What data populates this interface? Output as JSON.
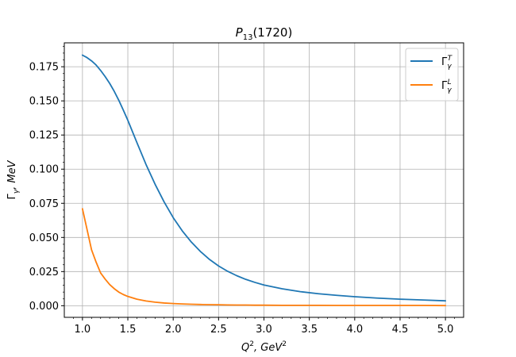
{
  "chart_data": {
    "type": "line",
    "title": "P13(1720)",
    "xlabel": "Q², GeV²",
    "ylabel": "Γγ, MeV",
    "xlim": [
      0.8,
      5.2
    ],
    "ylim": [
      -0.0085,
      0.1925
    ],
    "grid": true,
    "legend_position": "top-right",
    "x_ticks": [
      1.0,
      1.5,
      2.0,
      2.5,
      3.0,
      3.5,
      4.0,
      4.5,
      5.0
    ],
    "x_tick_labels": [
      "1.0",
      "1.5",
      "2.0",
      "2.5",
      "3.0",
      "3.5",
      "4.0",
      "4.5",
      "5.0"
    ],
    "y_ticks": [
      0.0,
      0.025,
      0.05,
      0.075,
      0.1,
      0.125,
      0.15,
      0.175
    ],
    "y_tick_labels": [
      "0.000",
      "0.025",
      "0.050",
      "0.075",
      "0.100",
      "0.125",
      "0.150",
      "0.175"
    ],
    "x": [
      1.0,
      1.05,
      1.1,
      1.15,
      1.2,
      1.25,
      1.3,
      1.35,
      1.4,
      1.45,
      1.5,
      1.6,
      1.7,
      1.8,
      1.9,
      2.0,
      2.1,
      2.2,
      2.3,
      2.4,
      2.5,
      2.6,
      2.7,
      2.8,
      2.9,
      3.0,
      3.2,
      3.4,
      3.6,
      3.8,
      4.0,
      4.25,
      4.5,
      4.75,
      5.0
    ],
    "series": [
      {
        "name": "Γγ^T",
        "color": "#1f77b4",
        "values": [
          0.1835,
          0.1817,
          0.1793,
          0.1763,
          0.1723,
          0.1678,
          0.1628,
          0.157,
          0.1505,
          0.1433,
          0.1358,
          0.1195,
          0.1035,
          0.089,
          0.076,
          0.0645,
          0.0548,
          0.0466,
          0.0397,
          0.0339,
          0.0291,
          0.0252,
          0.022,
          0.0193,
          0.0171,
          0.0152,
          0.0124,
          0.0103,
          0.0088,
          0.0076,
          0.0066,
          0.0056,
          0.0048,
          0.0042,
          0.0036
        ]
      },
      {
        "name": "Γγ^L",
        "color": "#ff7f0e",
        "values": [
          0.071,
          0.056,
          0.041,
          0.032,
          0.024,
          0.0195,
          0.0155,
          0.0125,
          0.01,
          0.0082,
          0.0068,
          0.0048,
          0.0035,
          0.0026,
          0.002,
          0.0016,
          0.0013,
          0.0011,
          0.0009,
          0.0008,
          0.0007,
          0.0006,
          0.0005,
          0.0005,
          0.0004,
          0.0004,
          0.0003,
          0.0003,
          0.0003,
          0.0002,
          0.0002,
          0.0002,
          0.0002,
          0.0002,
          0.0001
        ]
      }
    ]
  }
}
